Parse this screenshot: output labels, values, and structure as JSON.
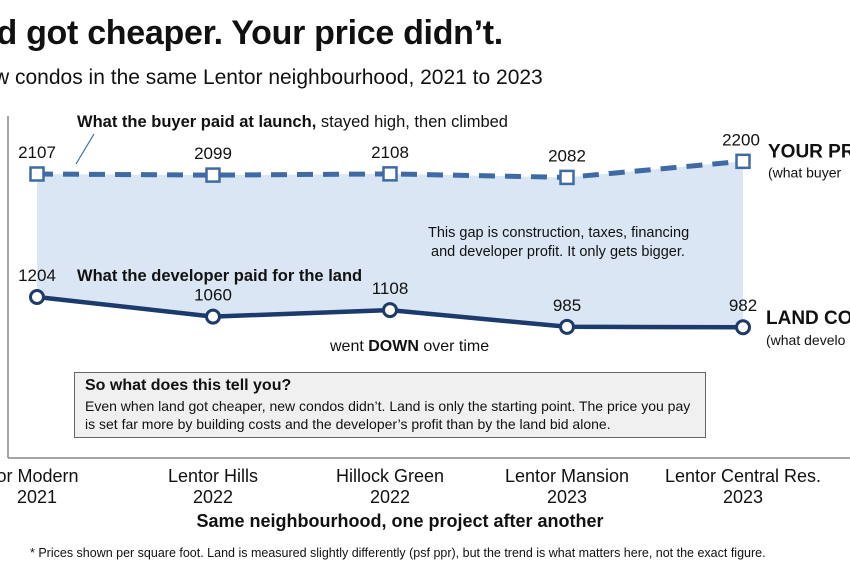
{
  "header": {
    "title": "nd got cheaper. Your price didn’t.",
    "subtitle": "w condos in the same Lentor neighbourhood, 2021 to 2023"
  },
  "chart_data": {
    "type": "line",
    "categories": [
      [
        "ntor Modern",
        "2021"
      ],
      [
        "Lentor Hills",
        "2022"
      ],
      [
        "Hillock Green",
        "2022"
      ],
      [
        "Lentor Mansion",
        "2023"
      ],
      [
        "Lentor Central Res.",
        "2023"
      ]
    ],
    "series": [
      {
        "name": "YOUR PR",
        "sub": "(what buyer",
        "style": "dashed-square",
        "color": "#3f6aa5",
        "values": [
          2107,
          2099,
          2108,
          2082,
          2200
        ],
        "labels": [
          "2107",
          "2099",
          "2108",
          "2082",
          "2200"
        ]
      },
      {
        "name": "LAND CO",
        "sub": "(what develo",
        "style": "solid-circle",
        "color": "#1c3a6b",
        "values": [
          1204,
          1060,
          1108,
          985,
          982
        ],
        "labels": [
          "1204",
          "1060",
          "1108",
          "985",
          "982"
        ]
      }
    ],
    "ylim": [
      300,
      2700
    ],
    "gap_fill": "#dbe6f4",
    "annotations": {
      "buyer_bold": "What the buyer paid at launch,",
      "buyer_rest": " stayed high, then climbed",
      "land_bold": "What the developer paid for the land",
      "gap_line1": "This gap is construction, taxes, financing",
      "gap_line2": "and developer profit. It only gets bigger.",
      "down_pre": "went ",
      "down_bold": "DOWN",
      "down_post": " over time"
    },
    "xlabel": "Same neighbourhood, one project after another"
  },
  "insight": {
    "title": "So what does this tell you?",
    "body": "Even when land got cheaper, new condos didn’t. Land is only the starting point. The price you pay is set far more by building costs and the developer’s profit than by the land bid alone."
  },
  "footnote": "* Prices shown per square foot. Land is measured slightly differently (psf ppr), but the trend is what matters here, not the exact figure."
}
